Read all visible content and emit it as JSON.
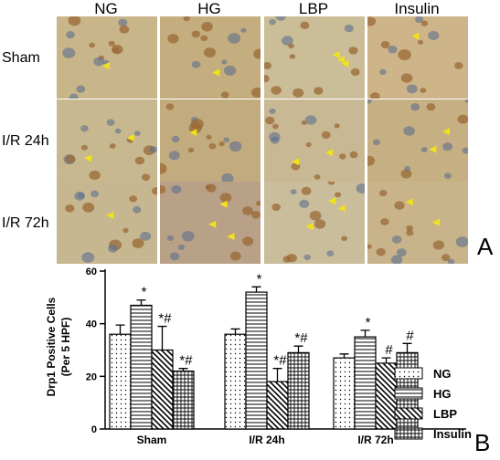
{
  "panel_a": {
    "label": "A",
    "columns": [
      "NG",
      "HG",
      "LBP",
      "Insulin"
    ],
    "rows": [
      "Sham",
      "I/R 24h",
      "I/R 72h"
    ],
    "image_fills": [
      [
        "#c9b58a",
        "#c4ad7e",
        "#cbbd97",
        "#cdb489"
      ],
      [
        "#c7b88f",
        "#c2ab7f",
        "#c9b894",
        "#c6b083"
      ],
      [
        "#c6b790",
        "#b9a188",
        "#cabd9c",
        "#c8b38b"
      ]
    ],
    "marker_color": "#f2e21a",
    "cell_color": "#9a6a36",
    "nucleus_color": "#5e6f8d"
  },
  "panel_b": {
    "label": "B"
  },
  "chart_data": {
    "type": "bar",
    "ylabel": "Drp1 Positive Cells\n(Per 5 HPF)",
    "ylim": [
      0,
      60
    ],
    "yticks": [
      0,
      20,
      40,
      60
    ],
    "categories": [
      "Sham",
      "I/R 24h",
      "I/R 72h"
    ],
    "series": [
      {
        "name": "NG",
        "values": [
          36,
          36,
          27
        ],
        "errors": [
          3.5,
          2,
          1.5
        ],
        "pattern": "dots",
        "annotations": [
          "",
          "",
          ""
        ]
      },
      {
        "name": "HG",
        "values": [
          47,
          52,
          35
        ],
        "errors": [
          2,
          2,
          2.5
        ],
        "pattern": "hlines",
        "annotations": [
          "*",
          "*",
          "*"
        ]
      },
      {
        "name": "LBP",
        "values": [
          30,
          18,
          25
        ],
        "errors": [
          9,
          5,
          2
        ],
        "pattern": "diag",
        "annotations": [
          "*#",
          "*#",
          "#"
        ]
      },
      {
        "name": "Insulin",
        "values": [
          22,
          29,
          29
        ],
        "errors": [
          1,
          2.5,
          3.5
        ],
        "pattern": "grid",
        "annotations": [
          "*#",
          "*#",
          "#"
        ]
      }
    ],
    "legend_position": "right"
  }
}
